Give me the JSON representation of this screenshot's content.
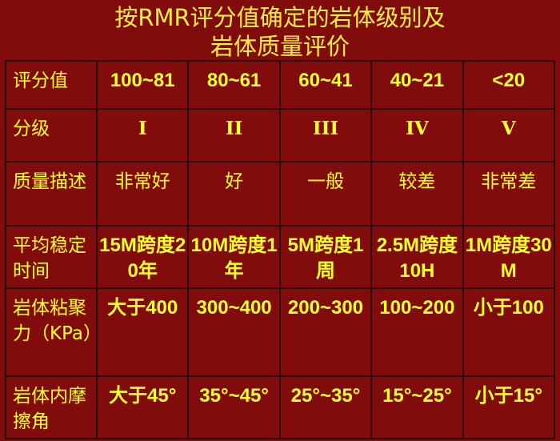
{
  "title": {
    "line1": "按RMR评分值确定的岩体级别及",
    "line2": "岩体质量评价"
  },
  "colors": {
    "background": "#800c0c",
    "text": "#ffff33",
    "border": "#2a0505"
  },
  "rows": [
    {
      "header": "评分值",
      "cells": [
        "100~81",
        "80~61",
        "60~41",
        "40~21",
        "<20"
      ]
    },
    {
      "header": "分级",
      "cells": [
        "I",
        "II",
        "III",
        "IV",
        "V"
      ]
    },
    {
      "header": "质量描述",
      "cells": [
        "非常好",
        "好",
        "一般",
        "较差",
        "非常差"
      ]
    },
    {
      "header": "平均稳定时间",
      "cells": [
        "15M跨度20年",
        "10M跨度1年",
        "5M跨度1周",
        "2.5M跨度10H",
        "1M跨度30M"
      ]
    },
    {
      "header": "岩体粘聚力（KPa）",
      "cells": [
        "大于400",
        "300~400",
        "200~300",
        "100~200",
        "小于100"
      ]
    },
    {
      "header": "岩体内摩擦角",
      "cells": [
        "大于45°",
        "35°~45°",
        "25°~35°",
        "15°~25°",
        "小于15°"
      ]
    }
  ]
}
